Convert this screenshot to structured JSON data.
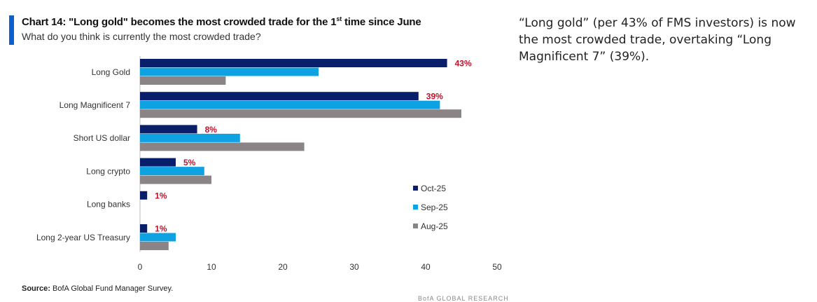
{
  "header": {
    "title_main": "Chart 14: \"Long gold\" becomes the most crowded trade for the 1",
    "title_sup": "st",
    "title_end": " time since June",
    "subtitle": "What do you think is currently the most crowded trade?"
  },
  "commentary": "“Long gold” (per 43% of FMS investors) is now the most crowded trade, overtaking “Long Magnificent 7” (39%).",
  "source": {
    "label": "Source:",
    "text": " BofA Global Fund Manager Survey."
  },
  "footer_brand": "BofA GLOBAL RESEARCH",
  "colors": {
    "accent": "#0d5fce",
    "oct": "#0a1f6b",
    "sep": "#0fa2e3",
    "aug": "#8b8486",
    "label": "#c0102c"
  },
  "chart_data": {
    "type": "bar",
    "orientation": "horizontal",
    "title": "Chart 14: \"Long gold\" becomes the most crowded trade for the 1st time since June",
    "subtitle": "What do you think is currently the most crowded trade?",
    "categories": [
      "Long Gold",
      "Long Magnificent 7",
      "Short US dollar",
      "Long crypto",
      "Long banks",
      "Long 2-year US Treasury"
    ],
    "series": [
      {
        "name": "Oct-25",
        "values": [
          43,
          39,
          8,
          5,
          1,
          1
        ]
      },
      {
        "name": "Sep-25",
        "values": [
          25,
          42,
          14,
          9,
          0,
          5
        ]
      },
      {
        "name": "Aug-25",
        "values": [
          12,
          45,
          23,
          10,
          0,
          4
        ]
      }
    ],
    "data_labels": [
      "43%",
      "39%",
      "8%",
      "5%",
      "1%",
      "1%"
    ],
    "xticks": [
      "0",
      "10",
      "20",
      "30",
      "40",
      "50"
    ],
    "xlim": [
      0,
      50
    ],
    "legend_position": "lower-right"
  }
}
